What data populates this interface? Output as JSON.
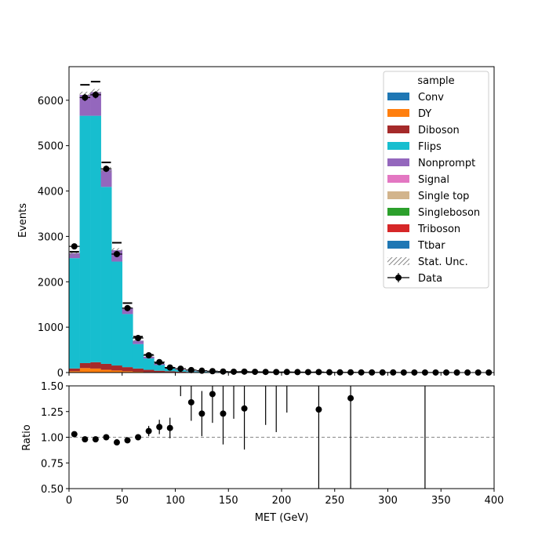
{
  "chart_data": [
    {
      "type": "bar",
      "stacked": true,
      "xlabel": "",
      "ylabel": "Events",
      "xlim": [
        0,
        400
      ],
      "ylim": [
        0,
        6740
      ],
      "yticks": [
        0,
        1000,
        2000,
        3000,
        4000,
        5000,
        6000
      ],
      "bin_edges": [
        0,
        10,
        20,
        30,
        40,
        50,
        60,
        70,
        80,
        90,
        100,
        110,
        120,
        130,
        140,
        150,
        160,
        170,
        180,
        190,
        200,
        210,
        220,
        230,
        240,
        250,
        260,
        270,
        280,
        290,
        300,
        310,
        320,
        330,
        340,
        350,
        360,
        370,
        380,
        390,
        400
      ],
      "legend": {
        "title": "sample",
        "placement": "top-right"
      },
      "series": [
        {
          "name": "Conv",
          "color": "#1f77b4",
          "values": [
            5,
            8,
            8,
            6,
            5,
            4,
            3,
            2,
            1,
            1,
            1,
            0,
            0,
            0,
            0,
            0,
            0,
            0,
            0,
            0,
            0,
            0,
            0,
            0,
            0,
            0,
            0,
            0,
            0,
            0,
            0,
            0,
            0,
            0,
            0,
            0,
            0,
            0,
            0,
            0
          ]
        },
        {
          "name": "DY",
          "color": "#ff7f0e",
          "values": [
            25,
            90,
            80,
            55,
            40,
            25,
            15,
            8,
            4,
            2,
            1,
            1,
            0,
            0,
            0,
            0,
            0,
            0,
            0,
            0,
            0,
            0,
            0,
            0,
            0,
            0,
            0,
            0,
            0,
            0,
            0,
            0,
            0,
            0,
            0,
            0,
            0,
            0,
            0,
            0
          ]
        },
        {
          "name": "Diboson",
          "color": "#a52a2a",
          "values": [
            60,
            110,
            140,
            130,
            110,
            90,
            70,
            50,
            35,
            25,
            18,
            12,
            9,
            6,
            5,
            4,
            3,
            2,
            2,
            1,
            1,
            1,
            1,
            1,
            0,
            0,
            0,
            0,
            0,
            0,
            0,
            0,
            0,
            0,
            0,
            0,
            0,
            0,
            0,
            0
          ]
        },
        {
          "name": "Flips",
          "color": "#17becf",
          "values": [
            2430,
            5450,
            5430,
            3900,
            2290,
            1170,
            540,
            250,
            125,
            60,
            33,
            17,
            12,
            9,
            6,
            4,
            3,
            2,
            2,
            1,
            1,
            1,
            1,
            1,
            0,
            0,
            0,
            0,
            0,
            0,
            0,
            0,
            0,
            0,
            0,
            0,
            0,
            0,
            0,
            0
          ]
        },
        {
          "name": "Nonprompt",
          "color": "#9467bd",
          "values": [
            110,
            460,
            520,
            380,
            250,
            130,
            75,
            38,
            28,
            18,
            11,
            7,
            6,
            4,
            3,
            3,
            2,
            2,
            1,
            1,
            1,
            1,
            1,
            1,
            0,
            0,
            0,
            0,
            0,
            0,
            0,
            0,
            0,
            0,
            0,
            0,
            0,
            0,
            0,
            0
          ]
        },
        {
          "name": "Signal",
          "color": "#e377c2",
          "values": [
            0,
            0,
            0,
            0,
            0,
            0,
            0,
            0,
            0,
            0,
            0,
            0,
            0,
            0,
            0,
            0,
            0,
            0,
            0,
            0,
            0,
            0,
            0,
            0,
            0,
            0,
            0,
            0,
            0,
            0,
            0,
            0,
            0,
            0,
            0,
            0,
            0,
            0,
            0,
            0
          ]
        },
        {
          "name": "Single top",
          "color": "#d2b48c",
          "values": [
            0,
            0,
            0,
            0,
            0,
            0,
            0,
            0,
            0,
            0,
            0,
            0,
            0,
            0,
            0,
            0,
            0,
            0,
            0,
            0,
            0,
            0,
            0,
            0,
            0,
            0,
            0,
            0,
            0,
            0,
            0,
            0,
            0,
            0,
            0,
            0,
            0,
            0,
            0,
            0
          ]
        },
        {
          "name": "Singleboson",
          "color": "#2ca02c",
          "values": [
            0,
            0,
            0,
            0,
            0,
            0,
            0,
            0,
            0,
            0,
            0,
            0,
            0,
            0,
            0,
            0,
            0,
            0,
            0,
            0,
            0,
            0,
            0,
            0,
            0,
            0,
            0,
            0,
            0,
            0,
            0,
            0,
            0,
            0,
            0,
            0,
            0,
            0,
            0,
            0
          ]
        },
        {
          "name": "Triboson",
          "color": "#d62728",
          "values": [
            0,
            0,
            0,
            0,
            0,
            0,
            0,
            0,
            0,
            0,
            0,
            0,
            0,
            0,
            0,
            0,
            0,
            0,
            0,
            0,
            0,
            0,
            0,
            0,
            0,
            0,
            0,
            0,
            0,
            0,
            0,
            0,
            0,
            0,
            0,
            0,
            0,
            0,
            0,
            0
          ]
        },
        {
          "name": "Ttbar",
          "color": "#1f77b4",
          "values": [
            0,
            0,
            0,
            0,
            0,
            0,
            0,
            0,
            0,
            0,
            0,
            0,
            0,
            0,
            0,
            0,
            0,
            0,
            0,
            0,
            0,
            0,
            0,
            0,
            0,
            0,
            0,
            0,
            0,
            0,
            0,
            0,
            0,
            0,
            0,
            0,
            0,
            0,
            0,
            0
          ]
        }
      ],
      "stat_unc_label": "Stat. Unc.",
      "data": {
        "name": "Data",
        "x": [
          5,
          15,
          25,
          35,
          45,
          55,
          65,
          75,
          85,
          95,
          105,
          115,
          125,
          135,
          145,
          155,
          165,
          175,
          185,
          195,
          205,
          215,
          225,
          235,
          245,
          255,
          265,
          275,
          285,
          295,
          305,
          315,
          325,
          335,
          345,
          355,
          365,
          375,
          385,
          395
        ],
        "y": [
          2780,
          6060,
          6120,
          4490,
          2610,
          1420,
          760,
          380,
          230,
          110,
          85,
          55,
          40,
          30,
          22,
          18,
          20,
          16,
          14,
          11,
          12,
          10,
          9,
          11,
          6,
          4,
          5,
          3,
          2,
          2,
          2,
          1,
          1,
          1,
          1,
          1,
          0,
          0,
          0,
          0
        ]
      },
      "alt_markers": {
        "x": [
          5,
          15,
          25,
          35,
          45,
          55,
          65,
          75,
          85,
          95
        ],
        "y": [
          2660,
          6340,
          6410,
          4630,
          2860,
          1530,
          790,
          390,
          210,
          105
        ]
      }
    },
    {
      "type": "scatter",
      "xlabel": "MET (GeV)",
      "ylabel": "Ratio",
      "xlim": [
        0,
        400
      ],
      "ylim": [
        0.5,
        1.5
      ],
      "xticks": [
        0,
        50,
        100,
        150,
        200,
        250,
        300,
        350,
        400
      ],
      "yticks": [
        0.5,
        0.75,
        1.0,
        1.25,
        1.5
      ],
      "ytick_labels": [
        "0.50",
        "0.75",
        "1.00",
        "1.25",
        "1.50"
      ],
      "reference_line": 1.0,
      "points": [
        {
          "x": 5,
          "y": 1.03,
          "err": 0.0
        },
        {
          "x": 15,
          "y": 0.98,
          "err": 0.0
        },
        {
          "x": 25,
          "y": 0.98,
          "err": 0.0
        },
        {
          "x": 35,
          "y": 1.0,
          "err": 0.0
        },
        {
          "x": 45,
          "y": 0.95,
          "err": 0.0
        },
        {
          "x": 55,
          "y": 0.97,
          "err": 0.0
        },
        {
          "x": 65,
          "y": 1.0,
          "err": 0.03
        },
        {
          "x": 75,
          "y": 1.06,
          "err": 0.05
        },
        {
          "x": 85,
          "y": 1.1,
          "err": 0.07
        },
        {
          "x": 95,
          "y": 1.09,
          "err": 0.1
        },
        {
          "x": 115,
          "y": 1.34,
          "err": 0.18
        },
        {
          "x": 125,
          "y": 1.23,
          "err": 0.22
        },
        {
          "x": 135,
          "y": 1.42,
          "err": 0.28
        },
        {
          "x": 145,
          "y": 1.23,
          "err": 0.3
        },
        {
          "x": 165,
          "y": 1.28,
          "err": 0.4
        },
        {
          "x": 235,
          "y": 1.27,
          "err": 0.8
        },
        {
          "x": 265,
          "y": 1.38,
          "err": 1.0
        }
      ],
      "error_bars_only": [
        {
          "x": 105,
          "y": 1.6,
          "err": 0.2
        },
        {
          "x": 155,
          "y": 1.6,
          "err": 0.42
        },
        {
          "x": 185,
          "y": 1.6,
          "err": 0.48
        },
        {
          "x": 195,
          "y": 1.6,
          "err": 0.55
        },
        {
          "x": 205,
          "y": 1.6,
          "err": 0.36
        },
        {
          "x": 335,
          "y": 1.6,
          "err": 1.5
        }
      ]
    }
  ]
}
